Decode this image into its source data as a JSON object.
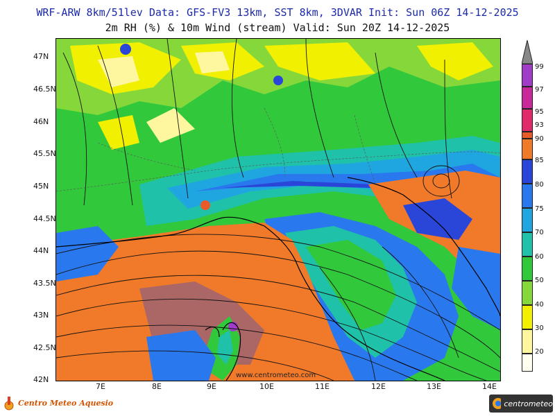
{
  "header": {
    "line1": "WRF-ARW 8km/51lev  Data: GFS-FV3 13km, SST 8km, 3DVAR  Init: Sun 06Z 14-12-2025",
    "line2": "2m RH (%) & 10m Wind (stream)  Valid: Sun 20Z 14-12-2025"
  },
  "axes": {
    "lat_labels": [
      "47N",
      "46.5N",
      "46N",
      "45.5N",
      "45N",
      "44.5N",
      "44N",
      "43.5N",
      "43N",
      "42.5N",
      "42N"
    ],
    "lon_labels": [
      "7E",
      "8E",
      "9E",
      "10E",
      "11E",
      "12E",
      "13E",
      "14E"
    ]
  },
  "colorbar": {
    "labels": [
      "99",
      "97",
      "95",
      "93",
      "90",
      "85",
      "80",
      "75",
      "70",
      "60",
      "50",
      "40",
      "30",
      "20"
    ],
    "colors": {
      "99": "#a03cc8",
      "97": "#c8289a",
      "95": "#e02a6a",
      "93": "#e85a2a",
      "90": "#f07a2a",
      "85": "#2a46d8",
      "80": "#2a78ee",
      "75": "#1fa6e0",
      "70": "#1fc1a8",
      "60": "#32c83c",
      "50": "#86d83a",
      "40": "#f0f000",
      "30": "#fff6a0",
      "20": "#fffff0"
    }
  },
  "watermark": "www.centrometeo.com",
  "logos": {
    "left": "Centro Meteo Aquesio",
    "right": "centrometeo"
  }
}
